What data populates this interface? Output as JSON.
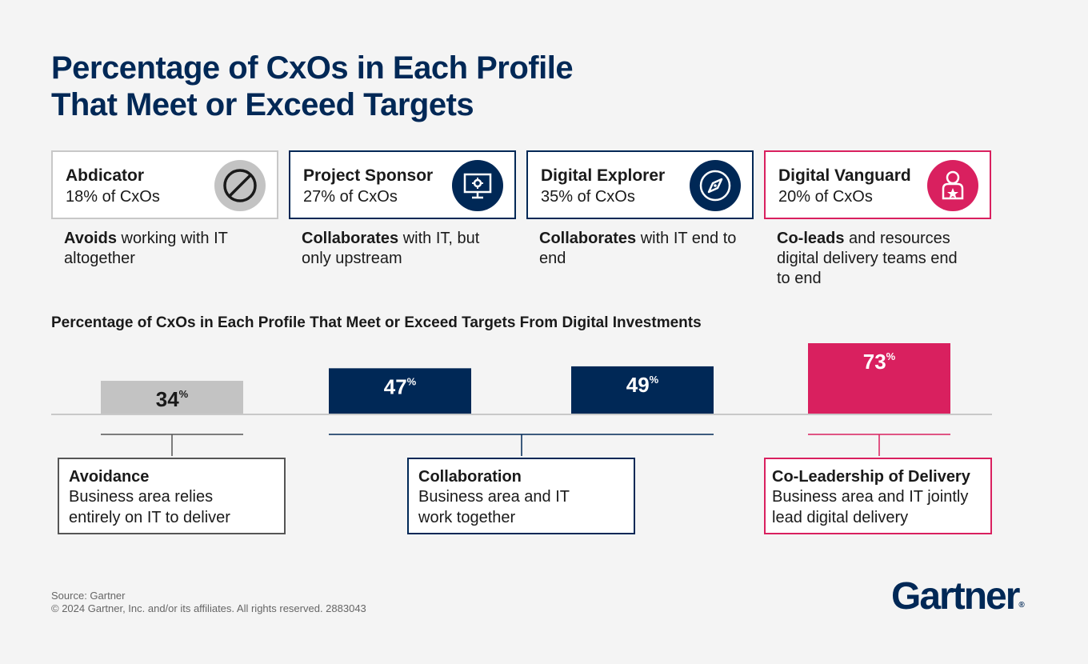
{
  "title_line1": "Percentage of CxOs in Each Profile",
  "title_line2": "That Meet or Exceed Targets",
  "profiles": [
    {
      "name": "Abdicator",
      "share": "18% of CxOs",
      "icon": "prohibited-icon",
      "desc_bold": "Avoids",
      "desc_rest": " working with IT altogether"
    },
    {
      "name": "Project Sponsor",
      "share": "27% of CxOs",
      "icon": "monitor-gear-icon",
      "desc_bold": "Collaborates",
      "desc_rest": " with IT, but only upstream"
    },
    {
      "name": "Digital Explorer",
      "share": "35% of CxOs",
      "icon": "compass-icon",
      "desc_bold": "Collaborates",
      "desc_rest": " with IT end to end"
    },
    {
      "name": "Digital Vanguard",
      "share": "20% of CxOs",
      "icon": "leader-star-icon",
      "desc_bold": "Co-leads",
      "desc_rest": " and resources digital delivery teams end to end"
    }
  ],
  "chart_data": {
    "type": "bar",
    "title": "Percentage of CxOs in Each Profile That Meet or Exceed Targets From Digital Investments",
    "categories": [
      "Abdicator",
      "Project Sponsor",
      "Digital Explorer",
      "Digital Vanguard"
    ],
    "values": [
      34,
      47,
      49,
      73
    ],
    "unit": "%",
    "colors": [
      "#c3c3c3",
      "#002856",
      "#002856",
      "#d9205f"
    ],
    "label_colors": [
      "#1a1a1a",
      "#ffffff",
      "#ffffff",
      "#ffffff"
    ],
    "ylim": [
      0,
      100
    ],
    "grid": false
  },
  "groups": [
    {
      "name": "Avoidance",
      "desc_line1": "Business area relies",
      "desc_line2": "entirely on IT to deliver"
    },
    {
      "name": "Collaboration",
      "desc_line1": "Business area and IT",
      "desc_line2": "work together"
    },
    {
      "name": "Co-Leadership of Delivery",
      "desc_line1": "Business area and IT jointly",
      "desc_line2": "lead digital delivery"
    }
  ],
  "source": "Source: Gartner",
  "copyright": "© 2024 Gartner, Inc. and/or its affiliates. All rights reserved. 2883043",
  "logo": "Gartner",
  "logo_mark": "®"
}
